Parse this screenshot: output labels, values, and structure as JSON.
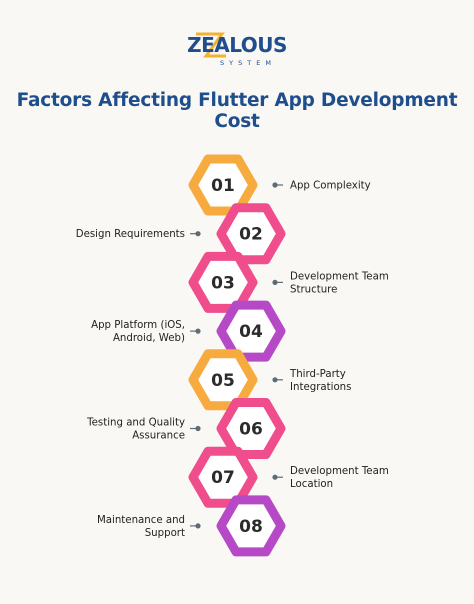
{
  "brand": {
    "name": "ZEALOUS",
    "tagline": "SYSTEM",
    "colors": {
      "main": "#1f4e8c",
      "accent": "#f2b233"
    }
  },
  "title": "Factors Affecting Flutter App Development Cost",
  "colors": {
    "orange": "#f7ab3e",
    "pink": "#ef4d8c",
    "purple": "#b64ac6",
    "dot": "#5f6b75"
  },
  "factors": [
    {
      "number": "01",
      "lines": [
        "App Complexity"
      ],
      "side": "right",
      "color": "orange"
    },
    {
      "number": "02",
      "lines": [
        "Design Requirements"
      ],
      "side": "left",
      "color": "pink"
    },
    {
      "number": "03",
      "lines": [
        "Development Team",
        "Structure"
      ],
      "side": "right",
      "color": "pink"
    },
    {
      "number": "04",
      "lines": [
        "App Platform (iOS,",
        "Android, Web)"
      ],
      "side": "left",
      "color": "purple"
    },
    {
      "number": "05",
      "lines": [
        "Third-Party",
        "Integrations"
      ],
      "side": "right",
      "color": "orange"
    },
    {
      "number": "06",
      "lines": [
        "Testing and Quality",
        "Assurance"
      ],
      "side": "left",
      "color": "pink"
    },
    {
      "number": "07",
      "lines": [
        "Development Team",
        "Location"
      ],
      "side": "right",
      "color": "pink"
    },
    {
      "number": "08",
      "lines": [
        "Maintenance and",
        "Support"
      ],
      "side": "left",
      "color": "purple"
    }
  ]
}
